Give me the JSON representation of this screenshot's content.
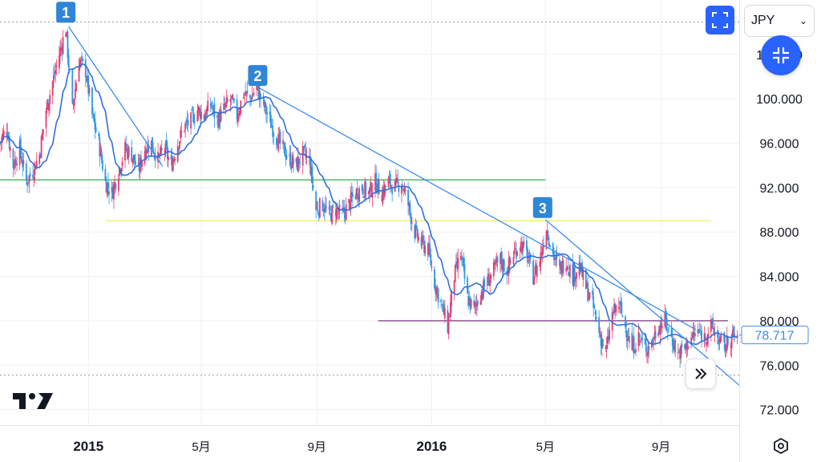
{
  "toolbar": {
    "currency": "JPY"
  },
  "icons": {
    "fullscreen": "fullscreen-icon",
    "collapse": "collapse-icon",
    "scroll_right": "double-chevron-right-icon",
    "settings": "gear-icon",
    "logo": "tradingview-logo"
  },
  "colors": {
    "up": "#e63a6e",
    "down": "#2f96e0",
    "ma": "#2f6fdb",
    "trendline": "#3c8cf0",
    "marker": "#2f86d6",
    "green_line": "#1fa132",
    "yellow_line": "#f0f056",
    "purple_line": "#6a1c6e",
    "price_tag": "#3c8cf0"
  },
  "chart_data": {
    "type": "candlestick",
    "title": "",
    "xlabel": "",
    "ylabel": "",
    "ylim": [
      70.6,
      108.9
    ],
    "y_ticks": [
      "104.000",
      "100.000",
      "96.000",
      "92.000",
      "88.000",
      "84.000",
      "80.000",
      "76.000",
      "72.000"
    ],
    "y_top_partial_label": "10   0",
    "x_range": [
      "2014-09-29",
      "2016-11-23"
    ],
    "x_ticks": [
      {
        "date": "2015-01-01",
        "label": "2015",
        "bold": true
      },
      {
        "date": "2015-05-01",
        "label": "5月",
        "bold": false
      },
      {
        "date": "2015-09-01",
        "label": "9月",
        "bold": false
      },
      {
        "date": "2016-01-01",
        "label": "2016",
        "bold": true
      },
      {
        "date": "2016-05-01",
        "label": "5月",
        "bold": false
      },
      {
        "date": "2016-09-01",
        "label": "9月",
        "bold": false
      }
    ],
    "last_price": "78.717",
    "close_path": [
      [
        "2014-09-29",
        96.0
      ],
      [
        "2014-10-06",
        97.5
      ],
      [
        "2014-10-13",
        94.0
      ],
      [
        "2014-10-20",
        95.5
      ],
      [
        "2014-10-27",
        92.5
      ],
      [
        "2014-11-03",
        93.5
      ],
      [
        "2014-11-10",
        95.0
      ],
      [
        "2014-11-17",
        99.0
      ],
      [
        "2014-11-24",
        101.5
      ],
      [
        "2014-12-01",
        104.0
      ],
      [
        "2014-12-08",
        106.3
      ],
      [
        "2014-12-15",
        99.0
      ],
      [
        "2014-12-22",
        103.5
      ],
      [
        "2014-12-29",
        102.5
      ],
      [
        "2015-01-05",
        98.5
      ],
      [
        "2015-01-12",
        96.0
      ],
      [
        "2015-01-19",
        92.5
      ],
      [
        "2015-01-26",
        91.5
      ],
      [
        "2015-02-02",
        93.5
      ],
      [
        "2015-02-09",
        95.5
      ],
      [
        "2015-02-16",
        95.0
      ],
      [
        "2015-02-23",
        93.5
      ],
      [
        "2015-03-02",
        95.5
      ],
      [
        "2015-03-09",
        96.0
      ],
      [
        "2015-03-16",
        94.5
      ],
      [
        "2015-03-23",
        95.5
      ],
      [
        "2015-03-30",
        94.0
      ],
      [
        "2015-04-06",
        96.0
      ],
      [
        "2015-04-13",
        97.5
      ],
      [
        "2015-04-20",
        98.0
      ],
      [
        "2015-04-27",
        99.0
      ],
      [
        "2015-05-04",
        98.5
      ],
      [
        "2015-05-11",
        99.5
      ],
      [
        "2015-05-18",
        98.0
      ],
      [
        "2015-05-25",
        99.0
      ],
      [
        "2015-06-01",
        100.0
      ],
      [
        "2015-06-08",
        98.5
      ],
      [
        "2015-06-15",
        100.5
      ],
      [
        "2015-06-22",
        100.0
      ],
      [
        "2015-06-29",
        101.0
      ],
      [
        "2015-07-06",
        99.5
      ],
      [
        "2015-07-13",
        98.0
      ],
      [
        "2015-07-20",
        96.5
      ],
      [
        "2015-07-27",
        95.5
      ],
      [
        "2015-08-03",
        94.5
      ],
      [
        "2015-08-10",
        94.0
      ],
      [
        "2015-08-17",
        95.0
      ],
      [
        "2015-08-24",
        94.5
      ],
      [
        "2015-08-31",
        90.0
      ],
      [
        "2015-09-07",
        90.5
      ],
      [
        "2015-09-14",
        89.5
      ],
      [
        "2015-09-21",
        90.0
      ],
      [
        "2015-09-28",
        89.5
      ],
      [
        "2015-10-05",
        90.5
      ],
      [
        "2015-10-12",
        91.5
      ],
      [
        "2015-10-19",
        92.0
      ],
      [
        "2015-10-26",
        91.5
      ],
      [
        "2015-11-02",
        92.5
      ],
      [
        "2015-11-09",
        91.5
      ],
      [
        "2015-11-16",
        92.5
      ],
      [
        "2015-11-23",
        92.0
      ],
      [
        "2015-11-30",
        92.5
      ],
      [
        "2015-12-07",
        90.5
      ],
      [
        "2015-12-14",
        88.0
      ],
      [
        "2015-12-21",
        87.0
      ],
      [
        "2015-12-28",
        86.5
      ],
      [
        "2016-01-04",
        83.5
      ],
      [
        "2016-01-11",
        81.5
      ],
      [
        "2016-01-18",
        79.5
      ],
      [
        "2016-01-25",
        84.0
      ],
      [
        "2016-02-01",
        86.0
      ],
      [
        "2016-02-08",
        82.0
      ],
      [
        "2016-02-15",
        81.0
      ],
      [
        "2016-02-22",
        82.5
      ],
      [
        "2016-02-29",
        83.5
      ],
      [
        "2016-03-07",
        84.5
      ],
      [
        "2016-03-14",
        85.5
      ],
      [
        "2016-03-21",
        84.5
      ],
      [
        "2016-03-28",
        86.0
      ],
      [
        "2016-04-04",
        87.0
      ],
      [
        "2016-04-11",
        86.0
      ],
      [
        "2016-04-18",
        84.0
      ],
      [
        "2016-04-25",
        85.5
      ],
      [
        "2016-05-02",
        88.5
      ],
      [
        "2016-05-09",
        86.0
      ],
      [
        "2016-05-16",
        84.5
      ],
      [
        "2016-05-23",
        85.5
      ],
      [
        "2016-05-30",
        84.0
      ],
      [
        "2016-06-06",
        85.0
      ],
      [
        "2016-06-13",
        83.0
      ],
      [
        "2016-06-20",
        81.5
      ],
      [
        "2016-06-27",
        79.0
      ],
      [
        "2016-07-04",
        77.0
      ],
      [
        "2016-07-11",
        80.5
      ],
      [
        "2016-07-18",
        81.5
      ],
      [
        "2016-07-25",
        79.5
      ],
      [
        "2016-08-01",
        77.5
      ],
      [
        "2016-08-08",
        78.5
      ],
      [
        "2016-08-15",
        77.5
      ],
      [
        "2016-08-22",
        78.0
      ],
      [
        "2016-08-29",
        79.5
      ],
      [
        "2016-09-05",
        80.0
      ],
      [
        "2016-09-12",
        78.5
      ],
      [
        "2016-09-19",
        77.0
      ],
      [
        "2016-09-26",
        77.5
      ],
      [
        "2016-10-03",
        78.5
      ],
      [
        "2016-10-10",
        79.0
      ],
      [
        "2016-10-17",
        78.5
      ],
      [
        "2016-10-24",
        79.5
      ],
      [
        "2016-10-31",
        78.5
      ],
      [
        "2016-11-07",
        77.5
      ],
      [
        "2016-11-14",
        78.5
      ],
      [
        "2016-11-21",
        78.7
      ]
    ],
    "dotted_lines": [
      {
        "y": 106.9,
        "color": "#9a9aa0"
      },
      {
        "y": 75.1,
        "color": "#9a9aa0"
      }
    ],
    "horizontal_lines": [
      {
        "y": 92.7,
        "x_start": "2014-09-29",
        "x_end": "2016-05-01",
        "color": "#1fa132"
      },
      {
        "y": 89.0,
        "x_start": "2015-01-19",
        "x_end": "2016-10-24",
        "color": "#f0f056"
      },
      {
        "y": 80.0,
        "x_start": "2015-11-05",
        "x_end": "2016-11-11",
        "color": "#6a1c6e"
      }
    ],
    "trendlines": [
      {
        "from": [
          "2014-12-11",
          106.5
        ],
        "to": [
          "2015-03-21",
          93.9
        ]
      },
      {
        "from": [
          "2015-07-01",
          101.0
        ],
        "to": [
          "2016-10-08",
          79.2
        ]
      },
      {
        "from": [
          "2016-05-01",
          89.1
        ],
        "to": [
          "2016-11-23",
          74.2
        ]
      }
    ],
    "markers": [
      {
        "label": "1",
        "date": "2014-12-08",
        "y": 107.8
      },
      {
        "label": "2",
        "date": "2015-06-30",
        "y": 102.1
      },
      {
        "label": "3",
        "date": "2016-04-28",
        "y": 90.2
      }
    ]
  }
}
